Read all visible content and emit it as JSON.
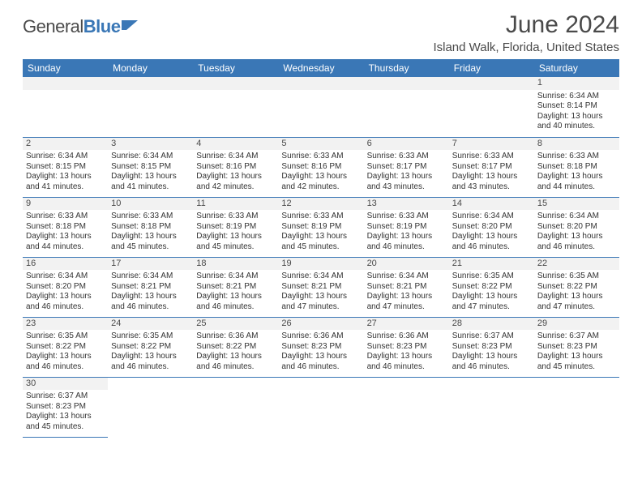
{
  "brand": {
    "name1": "General",
    "name2": "Blue"
  },
  "title": "June 2024",
  "location": "Island Walk, Florida, United States",
  "colors": {
    "header_bg": "#3a77b6",
    "daynum_bg": "#f2f2f2",
    "rule": "#3a77b6",
    "text": "#333333"
  },
  "fonts": {
    "title_size": 30,
    "location_size": 15,
    "header_size": 12,
    "cell_size": 10
  },
  "layout": {
    "cols": 7,
    "first_weekday_index": 6,
    "days_in_month": 30
  },
  "weekdays": [
    "Sunday",
    "Monday",
    "Tuesday",
    "Wednesday",
    "Thursday",
    "Friday",
    "Saturday"
  ],
  "days": [
    {
      "n": 1,
      "sunrise": "6:34 AM",
      "sunset": "8:14 PM",
      "daylight": "13 hours and 40 minutes."
    },
    {
      "n": 2,
      "sunrise": "6:34 AM",
      "sunset": "8:15 PM",
      "daylight": "13 hours and 41 minutes."
    },
    {
      "n": 3,
      "sunrise": "6:34 AM",
      "sunset": "8:15 PM",
      "daylight": "13 hours and 41 minutes."
    },
    {
      "n": 4,
      "sunrise": "6:34 AM",
      "sunset": "8:16 PM",
      "daylight": "13 hours and 42 minutes."
    },
    {
      "n": 5,
      "sunrise": "6:33 AM",
      "sunset": "8:16 PM",
      "daylight": "13 hours and 42 minutes."
    },
    {
      "n": 6,
      "sunrise": "6:33 AM",
      "sunset": "8:17 PM",
      "daylight": "13 hours and 43 minutes."
    },
    {
      "n": 7,
      "sunrise": "6:33 AM",
      "sunset": "8:17 PM",
      "daylight": "13 hours and 43 minutes."
    },
    {
      "n": 8,
      "sunrise": "6:33 AM",
      "sunset": "8:18 PM",
      "daylight": "13 hours and 44 minutes."
    },
    {
      "n": 9,
      "sunrise": "6:33 AM",
      "sunset": "8:18 PM",
      "daylight": "13 hours and 44 minutes."
    },
    {
      "n": 10,
      "sunrise": "6:33 AM",
      "sunset": "8:18 PM",
      "daylight": "13 hours and 45 minutes."
    },
    {
      "n": 11,
      "sunrise": "6:33 AM",
      "sunset": "8:19 PM",
      "daylight": "13 hours and 45 minutes."
    },
    {
      "n": 12,
      "sunrise": "6:33 AM",
      "sunset": "8:19 PM",
      "daylight": "13 hours and 45 minutes."
    },
    {
      "n": 13,
      "sunrise": "6:33 AM",
      "sunset": "8:19 PM",
      "daylight": "13 hours and 46 minutes."
    },
    {
      "n": 14,
      "sunrise": "6:34 AM",
      "sunset": "8:20 PM",
      "daylight": "13 hours and 46 minutes."
    },
    {
      "n": 15,
      "sunrise": "6:34 AM",
      "sunset": "8:20 PM",
      "daylight": "13 hours and 46 minutes."
    },
    {
      "n": 16,
      "sunrise": "6:34 AM",
      "sunset": "8:20 PM",
      "daylight": "13 hours and 46 minutes."
    },
    {
      "n": 17,
      "sunrise": "6:34 AM",
      "sunset": "8:21 PM",
      "daylight": "13 hours and 46 minutes."
    },
    {
      "n": 18,
      "sunrise": "6:34 AM",
      "sunset": "8:21 PM",
      "daylight": "13 hours and 46 minutes."
    },
    {
      "n": 19,
      "sunrise": "6:34 AM",
      "sunset": "8:21 PM",
      "daylight": "13 hours and 47 minutes."
    },
    {
      "n": 20,
      "sunrise": "6:34 AM",
      "sunset": "8:21 PM",
      "daylight": "13 hours and 47 minutes."
    },
    {
      "n": 21,
      "sunrise": "6:35 AM",
      "sunset": "8:22 PM",
      "daylight": "13 hours and 47 minutes."
    },
    {
      "n": 22,
      "sunrise": "6:35 AM",
      "sunset": "8:22 PM",
      "daylight": "13 hours and 47 minutes."
    },
    {
      "n": 23,
      "sunrise": "6:35 AM",
      "sunset": "8:22 PM",
      "daylight": "13 hours and 46 minutes."
    },
    {
      "n": 24,
      "sunrise": "6:35 AM",
      "sunset": "8:22 PM",
      "daylight": "13 hours and 46 minutes."
    },
    {
      "n": 25,
      "sunrise": "6:36 AM",
      "sunset": "8:22 PM",
      "daylight": "13 hours and 46 minutes."
    },
    {
      "n": 26,
      "sunrise": "6:36 AM",
      "sunset": "8:23 PM",
      "daylight": "13 hours and 46 minutes."
    },
    {
      "n": 27,
      "sunrise": "6:36 AM",
      "sunset": "8:23 PM",
      "daylight": "13 hours and 46 minutes."
    },
    {
      "n": 28,
      "sunrise": "6:37 AM",
      "sunset": "8:23 PM",
      "daylight": "13 hours and 46 minutes."
    },
    {
      "n": 29,
      "sunrise": "6:37 AM",
      "sunset": "8:23 PM",
      "daylight": "13 hours and 45 minutes."
    },
    {
      "n": 30,
      "sunrise": "6:37 AM",
      "sunset": "8:23 PM",
      "daylight": "13 hours and 45 minutes."
    }
  ],
  "labels": {
    "sunrise": "Sunrise: ",
    "sunset": "Sunset: ",
    "daylight": "Daylight: "
  }
}
